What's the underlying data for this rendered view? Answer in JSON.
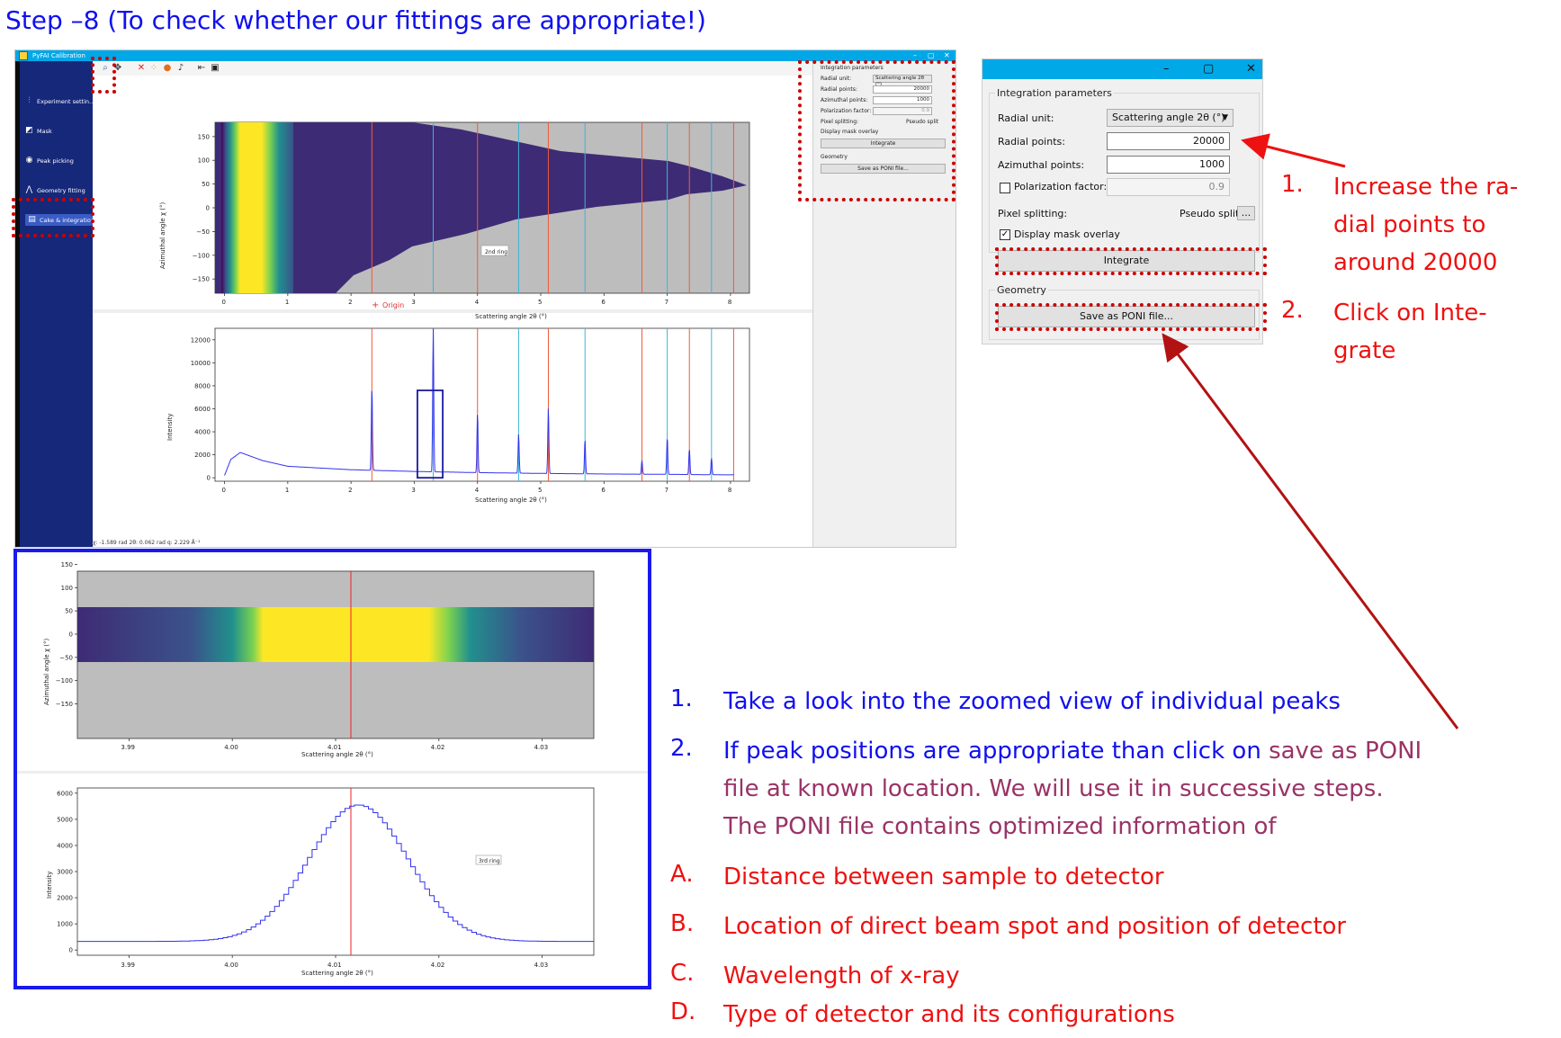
{
  "slide": {
    "title": "Step –8 (To check whether our fittings are appropriate!)"
  },
  "app": {
    "window_title": "PyFAI Calibration",
    "window_controls": [
      "–",
      "▢",
      "✕"
    ],
    "sidebar": {
      "items": [
        {
          "label": "Experiment settin...",
          "icon": "sliders-icon",
          "active": false
        },
        {
          "label": "Mask",
          "icon": "mask-icon",
          "active": false
        },
        {
          "label": "Peak picking",
          "icon": "target-icon",
          "active": false
        },
        {
          "label": "Geometry fitting",
          "icon": "geometry-icon",
          "active": false
        },
        {
          "label": "Cake & integration",
          "icon": "cake-icon",
          "active": true
        }
      ]
    },
    "toolbar": {
      "icons": [
        "zoom-icon",
        "pan-icon",
        "clear-icon",
        "extract-icon",
        "brush-icon",
        "ring-icon",
        "resize-icon",
        "save-icon"
      ]
    },
    "params": {
      "group_title": "Integration parameters",
      "radial_unit_label": "Radial unit:",
      "radial_unit_value": "Scattering angle 2θ (°)",
      "radial_points_label": "Radial points:",
      "radial_points_value": "20000",
      "azimuthal_points_label": "Azimuthal points:",
      "azimuthal_points_value": "1000",
      "polarization_label": "Polarization factor:",
      "polarization_value": "0.9",
      "pixel_splitting_label": "Pixel splitting:",
      "pixel_splitting_value": "Pseudo split",
      "more_button": "...",
      "mask_overlay_label": "Display mask overlay",
      "integrate_button": "Integrate",
      "geometry_title": "Geometry",
      "save_poni_button": "Save as PONI file..."
    },
    "status_text": "χ: -1.589 rad  2θ: 0.062 rad  q: 2.229 Å⁻¹"
  },
  "cake_plot": {
    "ylabel": "Azimuthal angle χ (°)",
    "xlabel": "Scattering angle 2θ (°)",
    "yticks": [
      "150",
      "100",
      "50",
      "0",
      "−50",
      "−100",
      "−150"
    ],
    "xticks": [
      "0",
      "1",
      "2",
      "3",
      "4",
      "5",
      "6",
      "7",
      "8"
    ],
    "origin_label": "Origin",
    "ring_label": "2nd ring"
  },
  "chart_data": [
    {
      "type": "line",
      "xlabel": "Scattering angle 2θ (°)",
      "ylabel": "Intensity",
      "xlim": [
        -0.15,
        8.3
      ],
      "ylim": [
        -300,
        13000
      ],
      "xticks": [
        0,
        1,
        2,
        3,
        4,
        5,
        6,
        7,
        8
      ],
      "yticks": [
        0,
        2000,
        4000,
        6000,
        8000,
        10000,
        12000
      ],
      "peaks": [
        {
          "x": 2.33,
          "y": 7800,
          "line_color": "#f05a3a"
        },
        {
          "x": 3.3,
          "y": 13000,
          "line_color": "#3ab6d6"
        },
        {
          "x": 4.0,
          "y": 5600,
          "line_color": "#f05a3a"
        },
        {
          "x": 4.65,
          "y": 3800,
          "line_color": "#3ab6d6"
        },
        {
          "x": 5.12,
          "y": 6100,
          "line_color": "#f05a3a"
        },
        {
          "x": 5.7,
          "y": 3300,
          "line_color": "#3ab6d6"
        },
        {
          "x": 6.6,
          "y": 1500,
          "line_color": "#f05a3a"
        },
        {
          "x": 7.0,
          "y": 3500,
          "line_color": "#3ab6d6"
        },
        {
          "x": 7.35,
          "y": 2500,
          "line_color": "#f05a3a"
        },
        {
          "x": 7.7,
          "y": 1700,
          "line_color": "#3ab6d6"
        },
        {
          "x": 8.05,
          "y": 300,
          "line_color": "#f05a3a"
        }
      ],
      "baseline": {
        "x": [
          0,
          0.1,
          0.25,
          0.6,
          1.0,
          2.0,
          3.0,
          4.0,
          5.0,
          6.0,
          7.0,
          8.05
        ],
        "y": [
          200,
          1600,
          2200,
          1500,
          1000,
          700,
          550,
          450,
          380,
          330,
          300,
          250
        ]
      },
      "highlight_box": {
        "x": [
          3.05,
          3.45
        ],
        "y": [
          0,
          7600
        ]
      }
    },
    {
      "type": "line",
      "xlabel": "Scattering angle 2θ (°)",
      "ylabel": "Intensity",
      "xlim": [
        3.985,
        4.035
      ],
      "ylim": [
        -200,
        6200
      ],
      "xticks": [
        3.99,
        4.0,
        4.01,
        4.02,
        4.03
      ],
      "yticks": [
        0,
        1000,
        2000,
        3000,
        4000,
        5000,
        6000
      ],
      "peak": {
        "center": 4.012,
        "height": 5550,
        "base": 330,
        "sigma": 0.0048
      },
      "marker_x": 4.012,
      "ring_label": "3rd ring"
    }
  ],
  "zoom_cake": {
    "ylabel": "Azimuthal angle χ (°)",
    "xlabel": "Scattering angle 2θ (°)",
    "yticks": [
      "150",
      "100",
      "50",
      "0",
      "−50",
      "−100",
      "−150"
    ],
    "xticks": [
      "3.99",
      "4.00",
      "4.01",
      "4.02",
      "4.03"
    ]
  },
  "zoom_profile": {
    "xlabel": "Scattering angle 2θ (°)",
    "ylabel": "Intensity",
    "xticks": [
      "3.99",
      "4.00",
      "4.01",
      "4.02",
      "4.03"
    ],
    "yticks": [
      "6000",
      "5000",
      "4000",
      "3000",
      "2000",
      "1000",
      "0"
    ],
    "ring_label": "3rd ring"
  },
  "annotations": {
    "right_steps": [
      {
        "num": "1.",
        "lines": [
          "Increase the ra-",
          "dial points to",
          "around 20000"
        ]
      },
      {
        "num": "2.",
        "lines": [
          "Click on Inte-",
          "grate"
        ]
      }
    ],
    "bottom_steps": [
      {
        "num": "1.",
        "text": "Take a look into the zoomed view of individual peaks"
      },
      {
        "num": "2.",
        "text_blue": "If peak positions are appropriate than click on ",
        "text_purple": "save as PONI",
        "line2": "file at known location. We will use it in successive steps.",
        "line3": "The PONI file contains optimized information of"
      }
    ],
    "list": [
      {
        "letter": "A.",
        "text": "Distance between sample to detector"
      },
      {
        "letter": "B.",
        "text": "Location of direct beam spot and position of detector"
      },
      {
        "letter": "C.",
        "text": "Wavelength of x-ray"
      },
      {
        "letter": "D.",
        "text": "Type of detector and its configurations"
      }
    ]
  },
  "colors": {
    "accent_red": "#ee1111",
    "accent_blue": "#1010ee",
    "purple": "#993366",
    "sidebar": "#15287a",
    "titlebar": "#00a8e8"
  }
}
